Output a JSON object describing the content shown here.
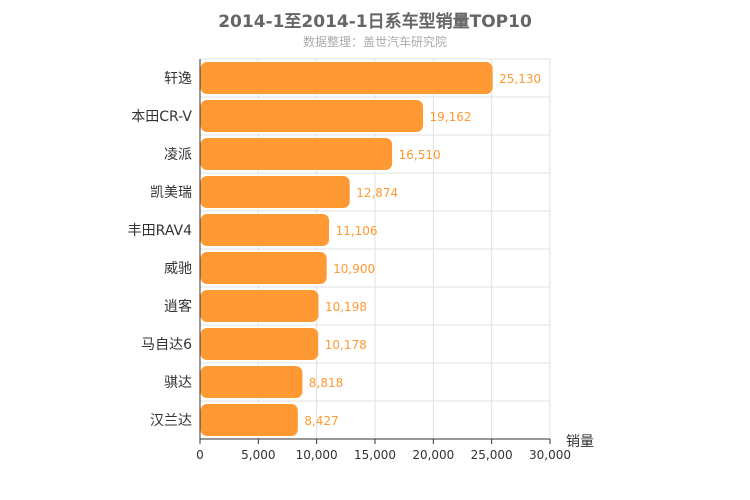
{
  "chart_data": {
    "type": "bar",
    "orientation": "horizontal",
    "title": "2014-1至2014-1日系车型销量TOP10",
    "subtitle": "数据整理：盖世汽车研究院",
    "xlabel": "销量",
    "ylabel": "",
    "categories": [
      "轩逸",
      "本田CR-V",
      "凌派",
      "凯美瑞",
      "丰田RAV4",
      "威驰",
      "逍客",
      "马自达6",
      "骐达",
      "汉兰达"
    ],
    "values": [
      25130,
      19162,
      16510,
      12874,
      11106,
      10900,
      10198,
      10178,
      8818,
      8427
    ],
    "value_labels": [
      "25,130",
      "19,162",
      "16,510",
      "12,874",
      "11,106",
      "10,900",
      "10,198",
      "10,178",
      "8,818",
      "8,427"
    ],
    "xlim": [
      0,
      30000
    ],
    "x_ticks": [
      0,
      5000,
      10000,
      15000,
      20000,
      25000,
      30000
    ],
    "x_tick_labels": [
      "0",
      "5,000",
      "10,000",
      "15,000",
      "20,000",
      "25,000",
      "30,000"
    ],
    "grid": true,
    "colors": {
      "bar": "#ff9933",
      "bar_border": "#ffffff",
      "value_label": "#ff9933",
      "grid": "#e0e0e0",
      "axis": "#333333"
    }
  }
}
